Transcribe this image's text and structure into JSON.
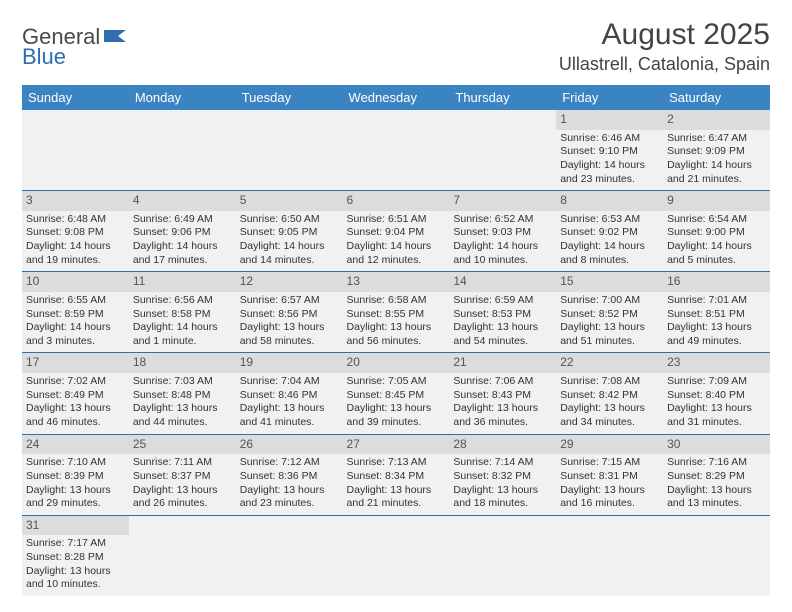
{
  "brand": {
    "part1": "General",
    "part2": "Blue"
  },
  "title": "August 2025",
  "location": "Ullastrell, Catalonia, Spain",
  "colors": {
    "header_bg": "#3b84c4",
    "header_text": "#ffffff",
    "row_divider": "#2f6fb0",
    "cell_bg": "#f1f1f1",
    "daynum_bg": "#dcdcdc",
    "page_bg": "#ffffff"
  },
  "day_headers": [
    "Sunday",
    "Monday",
    "Tuesday",
    "Wednesday",
    "Thursday",
    "Friday",
    "Saturday"
  ],
  "weeks": [
    [
      null,
      null,
      null,
      null,
      null,
      {
        "n": "1",
        "sr": "Sunrise: 6:46 AM",
        "ss": "Sunset: 9:10 PM",
        "dl1": "Daylight: 14 hours",
        "dl2": "and 23 minutes."
      },
      {
        "n": "2",
        "sr": "Sunrise: 6:47 AM",
        "ss": "Sunset: 9:09 PM",
        "dl1": "Daylight: 14 hours",
        "dl2": "and 21 minutes."
      }
    ],
    [
      {
        "n": "3",
        "sr": "Sunrise: 6:48 AM",
        "ss": "Sunset: 9:08 PM",
        "dl1": "Daylight: 14 hours",
        "dl2": "and 19 minutes."
      },
      {
        "n": "4",
        "sr": "Sunrise: 6:49 AM",
        "ss": "Sunset: 9:06 PM",
        "dl1": "Daylight: 14 hours",
        "dl2": "and 17 minutes."
      },
      {
        "n": "5",
        "sr": "Sunrise: 6:50 AM",
        "ss": "Sunset: 9:05 PM",
        "dl1": "Daylight: 14 hours",
        "dl2": "and 14 minutes."
      },
      {
        "n": "6",
        "sr": "Sunrise: 6:51 AM",
        "ss": "Sunset: 9:04 PM",
        "dl1": "Daylight: 14 hours",
        "dl2": "and 12 minutes."
      },
      {
        "n": "7",
        "sr": "Sunrise: 6:52 AM",
        "ss": "Sunset: 9:03 PM",
        "dl1": "Daylight: 14 hours",
        "dl2": "and 10 minutes."
      },
      {
        "n": "8",
        "sr": "Sunrise: 6:53 AM",
        "ss": "Sunset: 9:02 PM",
        "dl1": "Daylight: 14 hours",
        "dl2": "and 8 minutes."
      },
      {
        "n": "9",
        "sr": "Sunrise: 6:54 AM",
        "ss": "Sunset: 9:00 PM",
        "dl1": "Daylight: 14 hours",
        "dl2": "and 5 minutes."
      }
    ],
    [
      {
        "n": "10",
        "sr": "Sunrise: 6:55 AM",
        "ss": "Sunset: 8:59 PM",
        "dl1": "Daylight: 14 hours",
        "dl2": "and 3 minutes."
      },
      {
        "n": "11",
        "sr": "Sunrise: 6:56 AM",
        "ss": "Sunset: 8:58 PM",
        "dl1": "Daylight: 14 hours",
        "dl2": "and 1 minute."
      },
      {
        "n": "12",
        "sr": "Sunrise: 6:57 AM",
        "ss": "Sunset: 8:56 PM",
        "dl1": "Daylight: 13 hours",
        "dl2": "and 58 minutes."
      },
      {
        "n": "13",
        "sr": "Sunrise: 6:58 AM",
        "ss": "Sunset: 8:55 PM",
        "dl1": "Daylight: 13 hours",
        "dl2": "and 56 minutes."
      },
      {
        "n": "14",
        "sr": "Sunrise: 6:59 AM",
        "ss": "Sunset: 8:53 PM",
        "dl1": "Daylight: 13 hours",
        "dl2": "and 54 minutes."
      },
      {
        "n": "15",
        "sr": "Sunrise: 7:00 AM",
        "ss": "Sunset: 8:52 PM",
        "dl1": "Daylight: 13 hours",
        "dl2": "and 51 minutes."
      },
      {
        "n": "16",
        "sr": "Sunrise: 7:01 AM",
        "ss": "Sunset: 8:51 PM",
        "dl1": "Daylight: 13 hours",
        "dl2": "and 49 minutes."
      }
    ],
    [
      {
        "n": "17",
        "sr": "Sunrise: 7:02 AM",
        "ss": "Sunset: 8:49 PM",
        "dl1": "Daylight: 13 hours",
        "dl2": "and 46 minutes."
      },
      {
        "n": "18",
        "sr": "Sunrise: 7:03 AM",
        "ss": "Sunset: 8:48 PM",
        "dl1": "Daylight: 13 hours",
        "dl2": "and 44 minutes."
      },
      {
        "n": "19",
        "sr": "Sunrise: 7:04 AM",
        "ss": "Sunset: 8:46 PM",
        "dl1": "Daylight: 13 hours",
        "dl2": "and 41 minutes."
      },
      {
        "n": "20",
        "sr": "Sunrise: 7:05 AM",
        "ss": "Sunset: 8:45 PM",
        "dl1": "Daylight: 13 hours",
        "dl2": "and 39 minutes."
      },
      {
        "n": "21",
        "sr": "Sunrise: 7:06 AM",
        "ss": "Sunset: 8:43 PM",
        "dl1": "Daylight: 13 hours",
        "dl2": "and 36 minutes."
      },
      {
        "n": "22",
        "sr": "Sunrise: 7:08 AM",
        "ss": "Sunset: 8:42 PM",
        "dl1": "Daylight: 13 hours",
        "dl2": "and 34 minutes."
      },
      {
        "n": "23",
        "sr": "Sunrise: 7:09 AM",
        "ss": "Sunset: 8:40 PM",
        "dl1": "Daylight: 13 hours",
        "dl2": "and 31 minutes."
      }
    ],
    [
      {
        "n": "24",
        "sr": "Sunrise: 7:10 AM",
        "ss": "Sunset: 8:39 PM",
        "dl1": "Daylight: 13 hours",
        "dl2": "and 29 minutes."
      },
      {
        "n": "25",
        "sr": "Sunrise: 7:11 AM",
        "ss": "Sunset: 8:37 PM",
        "dl1": "Daylight: 13 hours",
        "dl2": "and 26 minutes."
      },
      {
        "n": "26",
        "sr": "Sunrise: 7:12 AM",
        "ss": "Sunset: 8:36 PM",
        "dl1": "Daylight: 13 hours",
        "dl2": "and 23 minutes."
      },
      {
        "n": "27",
        "sr": "Sunrise: 7:13 AM",
        "ss": "Sunset: 8:34 PM",
        "dl1": "Daylight: 13 hours",
        "dl2": "and 21 minutes."
      },
      {
        "n": "28",
        "sr": "Sunrise: 7:14 AM",
        "ss": "Sunset: 8:32 PM",
        "dl1": "Daylight: 13 hours",
        "dl2": "and 18 minutes."
      },
      {
        "n": "29",
        "sr": "Sunrise: 7:15 AM",
        "ss": "Sunset: 8:31 PM",
        "dl1": "Daylight: 13 hours",
        "dl2": "and 16 minutes."
      },
      {
        "n": "30",
        "sr": "Sunrise: 7:16 AM",
        "ss": "Sunset: 8:29 PM",
        "dl1": "Daylight: 13 hours",
        "dl2": "and 13 minutes."
      }
    ],
    [
      {
        "n": "31",
        "sr": "Sunrise: 7:17 AM",
        "ss": "Sunset: 8:28 PM",
        "dl1": "Daylight: 13 hours",
        "dl2": "and 10 minutes."
      },
      null,
      null,
      null,
      null,
      null,
      null
    ]
  ]
}
